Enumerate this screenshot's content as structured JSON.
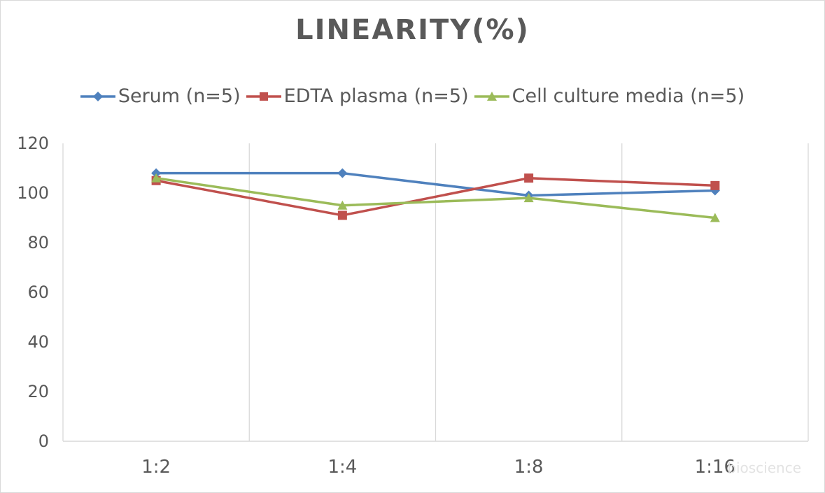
{
  "chart_data": {
    "type": "line",
    "title": "LINEARITY(%)",
    "categories": [
      "1:2",
      "1:4",
      "1:8",
      "1:16"
    ],
    "ylim": [
      0,
      120
    ],
    "yticks": [
      0,
      20,
      40,
      60,
      80,
      100,
      120
    ],
    "grid": "vertical",
    "legend_position": "top",
    "series": [
      {
        "name": "Serum (n=5)",
        "values": [
          108,
          108,
          99,
          101
        ],
        "color": "#4f81bd",
        "marker": "diamond"
      },
      {
        "name": "EDTA plasma (n=5)",
        "values": [
          105,
          91,
          106,
          103
        ],
        "color": "#c0504d",
        "marker": "square"
      },
      {
        "name": "Cell culture media (n=5)",
        "values": [
          106,
          95,
          98,
          90
        ],
        "color": "#9bbb59",
        "marker": "triangle"
      }
    ],
    "watermark": "bioscience"
  }
}
